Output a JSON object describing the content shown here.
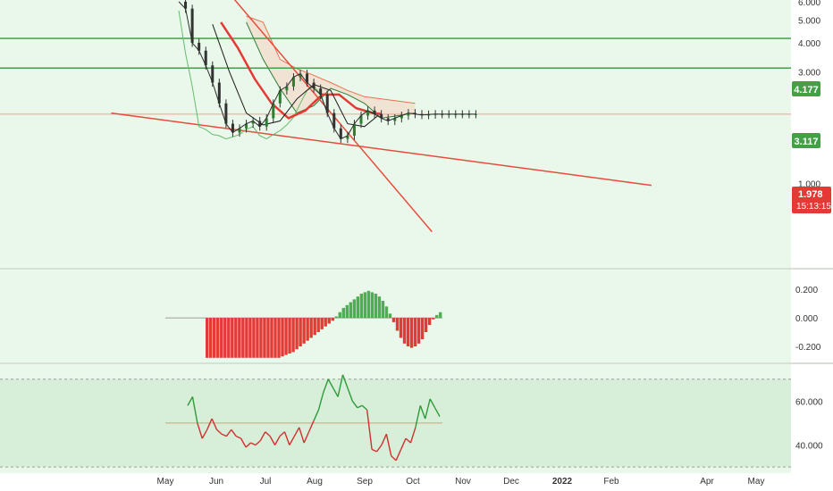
{
  "colors": {
    "background": "#e9f8ea",
    "bull": "#4caf50",
    "bear": "#e53935",
    "trendline": "#e74c3c",
    "level_line": "#43a047",
    "price_label": "#e53935",
    "level_label": "#43a047",
    "axis_text": "#333333",
    "grid": "#d6ecd7"
  },
  "chart_data": [
    {
      "type": "line",
      "title": "",
      "x_ticks": [
        "May",
        "Jun",
        "Jul",
        "Aug",
        "Sep",
        "Oct",
        "Nov",
        "Dec",
        "2022",
        "Feb",
        "Apr",
        "May"
      ],
      "y_ticks": [
        "6.000",
        "5.000",
        "4.000",
        "3.000",
        "1.000"
      ],
      "ylim": [
        0.45,
        6.1
      ],
      "scale": "log",
      "last_price": "1.978",
      "countdown": "15:13:15",
      "level_labels": [
        "4.177",
        "3.117"
      ],
      "levels": [
        4.177,
        3.117
      ],
      "series": [
        {
          "kind": "price-close",
          "t": [
            0,
            4,
            8,
            12,
            16,
            20,
            24,
            28,
            32,
            36,
            40,
            44,
            48,
            52,
            56,
            60,
            64,
            68,
            72,
            76,
            80,
            84,
            88,
            92,
            96,
            100,
            104,
            108,
            112,
            116,
            120,
            124,
            128,
            132,
            136,
            140,
            144,
            148,
            152,
            156,
            160,
            164,
            168,
            172,
            176
          ],
          "values": [
            6.0,
            5.6,
            4.0,
            3.7,
            3.2,
            2.7,
            2.2,
            1.8,
            1.65,
            1.72,
            1.8,
            1.85,
            1.75,
            1.9,
            2.2,
            2.5,
            2.6,
            2.85,
            2.95,
            2.7,
            2.55,
            2.4,
            2.0,
            1.72,
            1.55,
            1.6,
            1.8,
            1.95,
            2.05,
            1.98,
            1.9,
            1.85,
            1.9,
            1.95,
            2.0,
            1.98,
            1.96,
            1.97,
            1.98,
            1.978,
            1.978,
            1.978,
            1.978,
            1.978,
            1.978
          ]
        },
        {
          "kind": "conversion-line",
          "t": [
            20,
            30,
            40,
            50,
            60,
            70,
            80,
            90,
            100,
            110,
            118
          ],
          "values": [
            4.8,
            3.0,
            2.0,
            1.78,
            1.85,
            2.3,
            2.65,
            2.5,
            1.8,
            1.75,
            1.95
          ]
        },
        {
          "kind": "base-line",
          "t": [
            25,
            35,
            45,
            55,
            65,
            75,
            85,
            95,
            105,
            115,
            120
          ],
          "values": [
            4.9,
            3.8,
            2.8,
            2.2,
            1.9,
            2.05,
            2.4,
            2.4,
            2.1,
            2.0,
            1.98
          ]
        },
        {
          "kind": "lagging-span",
          "t": [
            0,
            4,
            8,
            12,
            16,
            20,
            24,
            28,
            32,
            36,
            40,
            44,
            48,
            52,
            56,
            60,
            64,
            68,
            72,
            76,
            80,
            84,
            88
          ],
          "values": [
            5.5,
            3.6,
            2.6,
            1.75,
            1.7,
            1.62,
            1.6,
            1.55,
            1.58,
            1.62,
            1.7,
            1.75,
            1.6,
            1.55,
            1.62,
            1.68,
            1.78,
            1.92,
            2.2,
            2.5,
            2.6,
            2.42,
            2.0
          ]
        },
        {
          "kind": "leading-span-a",
          "t": [
            40,
            50,
            60,
            70,
            80,
            90,
            100,
            110,
            120,
            130,
            140
          ],
          "values": [
            4.9,
            3.4,
            2.55,
            2.0,
            2.15,
            2.55,
            2.4,
            2.2,
            1.9,
            1.95,
            2.0
          ]
        },
        {
          "kind": "leading-span-b",
          "t": [
            40,
            50,
            60,
            70,
            80,
            90,
            100,
            110,
            120,
            130,
            140
          ],
          "values": [
            5.2,
            4.9,
            3.4,
            3.1,
            2.9,
            2.7,
            2.5,
            2.35,
            2.3,
            2.25,
            2.2
          ]
        }
      ],
      "trendlines": [
        {
          "from": [
            -40,
            2.0
          ],
          "to": [
            280,
            0.98
          ]
        },
        {
          "from": [
            30,
            6.5
          ],
          "to": [
            150,
            0.62
          ]
        }
      ]
    },
    {
      "type": "bar",
      "title": "",
      "y_ticks": [
        "0.200",
        "0.000",
        "-0.200"
      ],
      "ylim": [
        -0.3,
        0.32
      ],
      "t_start": 20,
      "values": [
        -0.28,
        -0.28,
        -0.28,
        -0.28,
        -0.28,
        -0.28,
        -0.28,
        -0.28,
        -0.28,
        -0.28,
        -0.28,
        -0.28,
        -0.28,
        -0.28,
        -0.28,
        -0.28,
        -0.28,
        -0.28,
        -0.28,
        -0.28,
        -0.28,
        -0.27,
        -0.26,
        -0.25,
        -0.24,
        -0.22,
        -0.2,
        -0.18,
        -0.16,
        -0.14,
        -0.12,
        -0.1,
        -0.08,
        -0.06,
        -0.04,
        -0.02,
        0.01,
        0.04,
        0.07,
        0.09,
        0.11,
        0.13,
        0.15,
        0.17,
        0.18,
        0.19,
        0.18,
        0.17,
        0.15,
        0.12,
        0.08,
        0.03,
        -0.03,
        -0.09,
        -0.14,
        -0.18,
        -0.2,
        -0.21,
        -0.2,
        -0.18,
        -0.15,
        -0.1,
        -0.05,
        -0.01,
        0.02,
        0.04
      ]
    },
    {
      "type": "line",
      "title": "",
      "y_ticks": [
        "60.000",
        "40.000"
      ],
      "ylim": [
        28,
        76
      ],
      "threshold_lines": [
        70,
        30
      ],
      "mid_line": 50,
      "t": [
        0,
        2,
        4,
        6,
        8,
        10,
        12,
        14,
        16,
        18,
        20,
        22,
        24,
        26,
        28,
        30,
        32,
        34,
        36,
        38,
        40,
        42,
        44,
        46,
        48,
        50,
        52,
        54,
        56,
        58,
        60,
        62,
        64,
        66,
        68,
        70,
        72,
        74,
        76,
        78,
        80,
        82,
        84,
        86,
        88,
        90,
        92,
        94,
        96,
        98,
        100,
        102,
        104
      ],
      "values": [
        58,
        62,
        50,
        43,
        47,
        52,
        47,
        45,
        44,
        47,
        44,
        43,
        39,
        41,
        40,
        42,
        46,
        44,
        40,
        44,
        46,
        40,
        44,
        48,
        41,
        46,
        51,
        56,
        64,
        70,
        66,
        62,
        72,
        66,
        60,
        57,
        58,
        56,
        38,
        37,
        40,
        45,
        35,
        33,
        38,
        43,
        41,
        48,
        58,
        52,
        61,
        57,
        53
      ]
    }
  ]
}
